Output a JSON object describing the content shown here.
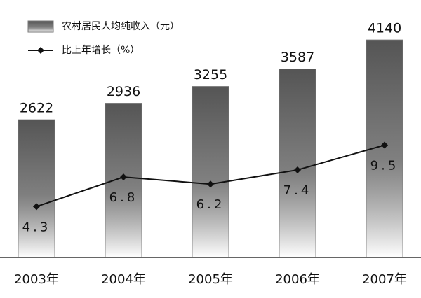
{
  "chart_data": {
    "type": "bar",
    "categories": [
      "2003年",
      "2004年",
      "2005年",
      "2006年",
      "2007年"
    ],
    "series": [
      {
        "name": "农村居民人均纯收入（元）",
        "type": "bar",
        "color": "#555555",
        "values": [
          2622,
          2936,
          3255,
          3587,
          4140
        ]
      },
      {
        "name": "比上年增长（%）",
        "type": "line",
        "axis": "y2",
        "color": "#111111",
        "values": [
          4.3,
          6.8,
          6.2,
          7.4,
          9.5
        ]
      }
    ],
    "ylim": [
      0,
      4500
    ],
    "y2lim": [
      0,
      20
    ],
    "legend": "top-left",
    "grid": false
  }
}
